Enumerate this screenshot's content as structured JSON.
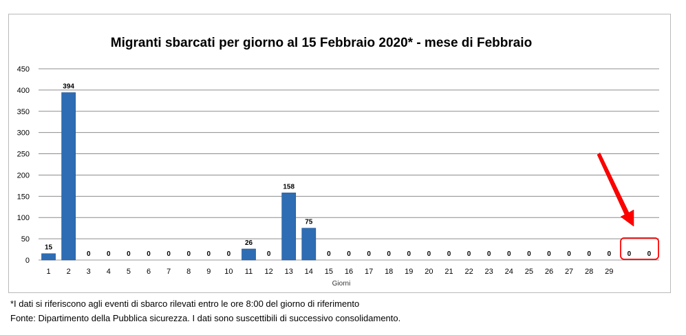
{
  "chart_data": {
    "type": "bar",
    "title": "Migranti sbarcati per giorno al 15 Febbraio 2020* - mese di Febbraio",
    "xlabel": "Giorni",
    "ylabel": "",
    "ylim": [
      0,
      450
    ],
    "yticks": [
      0,
      50,
      100,
      150,
      200,
      250,
      300,
      350,
      400,
      450
    ],
    "grid": true,
    "legend": "none",
    "categories": [
      "1",
      "2",
      "3",
      "4",
      "5",
      "6",
      "7",
      "8",
      "9",
      "10",
      "11",
      "12",
      "13",
      "14",
      "15",
      "16",
      "17",
      "18",
      "19",
      "20",
      "21",
      "22",
      "23",
      "24",
      "25",
      "26",
      "27",
      "28",
      "29",
      "",
      ""
    ],
    "values": [
      15,
      394,
      0,
      0,
      0,
      0,
      0,
      0,
      0,
      0,
      26,
      0,
      158,
      75,
      0,
      0,
      0,
      0,
      0,
      0,
      0,
      0,
      0,
      0,
      0,
      0,
      0,
      0,
      0,
      0,
      0
    ],
    "data_labels": [
      "15",
      "394",
      "0",
      "0",
      "0",
      "0",
      "0",
      "0",
      "0",
      "0",
      "26",
      "0",
      "158",
      "75",
      "0",
      "0",
      "0",
      "0",
      "0",
      "0",
      "0",
      "0",
      "0",
      "0",
      "0",
      "0",
      "0",
      "0",
      "0",
      "0",
      "0"
    ],
    "bar_color": "#2e6db3",
    "annotation": {
      "arrow_color": "#ff0000",
      "highlight": "last two bars (0, 0)",
      "box_color": "#ff0000"
    }
  },
  "footnotes": {
    "note": "*I dati si riferiscono agli eventi di sbarco rilevati entro le ore 8:00 del giorno di riferimento",
    "source": "Fonte: Dipartimento della Pubblica sicurezza. I dati sono suscettibili di successivo consolidamento."
  }
}
